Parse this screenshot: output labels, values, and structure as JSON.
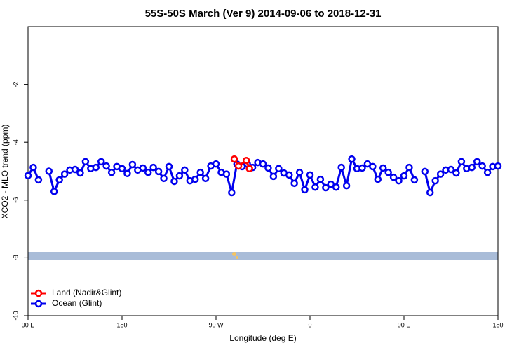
{
  "chart_data": {
    "type": "line",
    "title": "55S-50S March (Ver 9)   2014-09-06 to 2018-12-31",
    "x_label": "Longitude (deg E)",
    "y_label": "XCO2 - MLO trend (ppm)",
    "xlim": [
      90,
      540
    ],
    "xticks": [
      {
        "value": 90,
        "label": "90 E"
      },
      180,
      {
        "value": 270,
        "label": "90 W"
      },
      {
        "value": 360,
        "label": "0"
      },
      {
        "value": 450,
        "label": "90 E"
      },
      {
        "value": 540,
        "label": "180"
      }
    ],
    "ylim": [
      -10,
      0
    ],
    "yticks": [
      -10,
      -8,
      -6,
      -4,
      -2
    ],
    "legend": "bottomleft",
    "series": [
      {
        "name": "Land (Nadir&Glint)",
        "color": "#ff0000",
        "x": [
          287.5,
          291.5,
          299,
          302
        ],
        "values": [
          -4.58,
          -4.82,
          -4.63,
          -4.91
        ]
      },
      {
        "name": "Ocean (Glint)",
        "color": "#0000ee",
        "x": [
          90,
          95,
          100,
          105,
          110,
          115,
          120,
          125,
          130,
          135,
          140,
          145,
          150,
          155,
          160,
          165,
          170,
          175,
          180,
          185,
          190,
          195,
          200,
          205,
          210,
          215,
          220,
          225,
          230,
          235,
          240,
          245,
          250,
          255,
          260,
          265,
          270,
          275,
          280,
          285,
          290,
          295,
          300,
          305,
          310,
          315,
          320,
          325,
          330,
          335,
          340,
          345,
          350,
          355,
          360,
          365,
          370,
          375,
          380,
          385,
          390,
          395,
          400,
          405,
          410,
          415,
          420,
          425,
          430,
          435,
          440,
          445,
          450,
          455,
          460,
          465,
          470,
          475,
          480,
          485,
          490,
          495,
          500,
          505,
          510,
          515,
          520,
          525,
          530,
          535,
          540
        ],
        "values": [
          -5.15,
          -4.87,
          -5.3,
          null,
          -5.0,
          -5.7,
          -5.3,
          -5.1,
          -4.96,
          -4.94,
          -5.06,
          -4.67,
          -4.91,
          -4.87,
          -4.67,
          -4.82,
          -5.04,
          -4.84,
          -4.91,
          -5.08,
          -4.77,
          -4.96,
          -4.89,
          -5.04,
          -4.87,
          -5.01,
          -5.25,
          -4.84,
          -5.35,
          -5.16,
          -4.96,
          -5.33,
          -5.28,
          -5.04,
          -5.25,
          -4.82,
          -4.75,
          -5.04,
          -5.1,
          -5.74,
          -4.75,
          -4.84,
          -4.75,
          -4.87,
          -4.7,
          -4.75,
          -4.89,
          -5.18,
          -4.91,
          -5.06,
          -5.13,
          -5.42,
          -5.04,
          -5.64,
          -5.13,
          -5.55,
          -5.28,
          -5.57,
          -5.45,
          -5.55,
          -4.87,
          -5.5,
          -4.58,
          -4.91,
          -4.89,
          -4.75,
          -4.84,
          -5.28,
          -4.89,
          -5.04,
          -5.21,
          -5.33,
          -5.16,
          -4.87,
          -5.3,
          null,
          -5.01,
          -5.74,
          -5.33,
          -5.1,
          -4.96,
          -4.94,
          -5.06,
          -4.67,
          -4.91,
          -4.87,
          -4.67,
          -4.82,
          -5.04,
          -4.84,
          -4.82
        ]
      }
    ]
  }
}
